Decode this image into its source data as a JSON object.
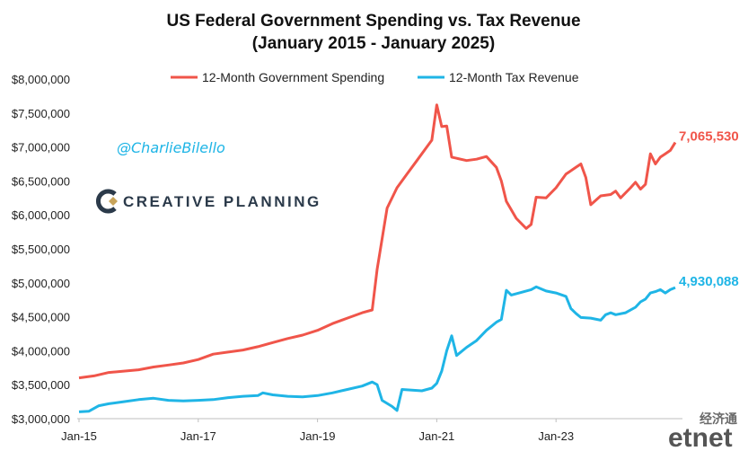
{
  "chart_data": {
    "type": "line",
    "title": "US Federal Government Spending vs. Tax Revenue",
    "subtitle": "(January 2015 - January 2025)",
    "ylim": [
      3000000,
      8000000
    ],
    "y_ticks": [
      3000000,
      3500000,
      4000000,
      4500000,
      5000000,
      5500000,
      6000000,
      6500000,
      7000000,
      7500000,
      8000000
    ],
    "y_tick_labels": [
      "$3,000,000",
      "$3,500,000",
      "$4,000,000",
      "$4,500,000",
      "$5,000,000",
      "$5,500,000",
      "$6,000,000",
      "$6,500,000",
      "$7,000,000",
      "$7,500,000",
      "$8,000,000"
    ],
    "x_tick_labels": [
      "Jan-15",
      "Jan-17",
      "Jan-19",
      "Jan-21",
      "Jan-23"
    ],
    "x_tick_index": [
      0,
      24,
      48,
      72,
      96
    ],
    "n_points": 121,
    "grid": false,
    "legend_position": "top-center",
    "series": [
      {
        "name": "12-Month Government Spending",
        "color": "#f0554a",
        "end_label": "7,065,530",
        "points": [
          [
            0,
            3600000
          ],
          [
            3,
            3630000
          ],
          [
            6,
            3680000
          ],
          [
            9,
            3700000
          ],
          [
            12,
            3720000
          ],
          [
            15,
            3760000
          ],
          [
            18,
            3790000
          ],
          [
            21,
            3820000
          ],
          [
            24,
            3870000
          ],
          [
            27,
            3950000
          ],
          [
            30,
            3980000
          ],
          [
            33,
            4010000
          ],
          [
            36,
            4060000
          ],
          [
            39,
            4120000
          ],
          [
            42,
            4180000
          ],
          [
            45,
            4230000
          ],
          [
            48,
            4300000
          ],
          [
            51,
            4400000
          ],
          [
            54,
            4480000
          ],
          [
            57,
            4560000
          ],
          [
            59,
            4600000
          ],
          [
            60,
            5200000
          ],
          [
            62,
            6100000
          ],
          [
            64,
            6400000
          ],
          [
            66,
            6600000
          ],
          [
            68,
            6800000
          ],
          [
            70,
            7000000
          ],
          [
            71,
            7100000
          ],
          [
            72,
            7620000
          ],
          [
            73,
            7300000
          ],
          [
            74,
            7310000
          ],
          [
            75,
            6850000
          ],
          [
            78,
            6800000
          ],
          [
            80,
            6820000
          ],
          [
            82,
            6860000
          ],
          [
            84,
            6700000
          ],
          [
            85,
            6500000
          ],
          [
            86,
            6200000
          ],
          [
            88,
            5950000
          ],
          [
            90,
            5800000
          ],
          [
            91,
            5860000
          ],
          [
            92,
            6260000
          ],
          [
            94,
            6250000
          ],
          [
            96,
            6400000
          ],
          [
            98,
            6600000
          ],
          [
            100,
            6700000
          ],
          [
            101,
            6750000
          ],
          [
            102,
            6550000
          ],
          [
            103,
            6150000
          ],
          [
            105,
            6280000
          ],
          [
            107,
            6300000
          ],
          [
            108,
            6350000
          ],
          [
            109,
            6250000
          ],
          [
            111,
            6400000
          ],
          [
            112,
            6480000
          ],
          [
            113,
            6380000
          ],
          [
            114,
            6450000
          ],
          [
            115,
            6900000
          ],
          [
            116,
            6750000
          ],
          [
            117,
            6850000
          ],
          [
            118,
            6900000
          ],
          [
            119,
            6950000
          ],
          [
            120,
            7065530
          ]
        ]
      },
      {
        "name": "12-Month Tax Revenue",
        "color": "#1fb5e6",
        "end_label": "4,930,088",
        "points": [
          [
            0,
            3100000
          ],
          [
            2,
            3110000
          ],
          [
            4,
            3190000
          ],
          [
            6,
            3220000
          ],
          [
            9,
            3250000
          ],
          [
            12,
            3280000
          ],
          [
            15,
            3300000
          ],
          [
            18,
            3270000
          ],
          [
            21,
            3260000
          ],
          [
            24,
            3270000
          ],
          [
            27,
            3280000
          ],
          [
            30,
            3310000
          ],
          [
            33,
            3330000
          ],
          [
            36,
            3340000
          ],
          [
            37,
            3380000
          ],
          [
            39,
            3350000
          ],
          [
            42,
            3330000
          ],
          [
            45,
            3320000
          ],
          [
            48,
            3340000
          ],
          [
            51,
            3380000
          ],
          [
            54,
            3430000
          ],
          [
            57,
            3480000
          ],
          [
            59,
            3540000
          ],
          [
            60,
            3500000
          ],
          [
            61,
            3270000
          ],
          [
            63,
            3180000
          ],
          [
            64,
            3120000
          ],
          [
            65,
            3430000
          ],
          [
            67,
            3420000
          ],
          [
            69,
            3410000
          ],
          [
            71,
            3450000
          ],
          [
            72,
            3520000
          ],
          [
            73,
            3700000
          ],
          [
            74,
            4000000
          ],
          [
            75,
            4220000
          ],
          [
            76,
            3930000
          ],
          [
            78,
            4050000
          ],
          [
            80,
            4150000
          ],
          [
            82,
            4300000
          ],
          [
            84,
            4420000
          ],
          [
            85,
            4460000
          ],
          [
            86,
            4890000
          ],
          [
            87,
            4820000
          ],
          [
            89,
            4860000
          ],
          [
            91,
            4900000
          ],
          [
            92,
            4940000
          ],
          [
            94,
            4880000
          ],
          [
            96,
            4850000
          ],
          [
            98,
            4800000
          ],
          [
            99,
            4620000
          ],
          [
            100,
            4550000
          ],
          [
            101,
            4490000
          ],
          [
            103,
            4480000
          ],
          [
            105,
            4450000
          ],
          [
            106,
            4530000
          ],
          [
            107,
            4560000
          ],
          [
            108,
            4530000
          ],
          [
            110,
            4560000
          ],
          [
            112,
            4640000
          ],
          [
            113,
            4720000
          ],
          [
            114,
            4760000
          ],
          [
            115,
            4850000
          ],
          [
            116,
            4870000
          ],
          [
            117,
            4900000
          ],
          [
            118,
            4850000
          ],
          [
            119,
            4900000
          ],
          [
            120,
            4930088
          ]
        ]
      }
    ]
  },
  "annotations": {
    "handle": "@CharlieBilello",
    "brand": "CREATIVE PLANNING",
    "watermark_cn": "经济通",
    "watermark_en": "etnet"
  },
  "colors": {
    "spending": "#f0554a",
    "revenue": "#1fb5e6",
    "handle": "#1fb5e6",
    "brand": "#2b3a4a",
    "brand_accent": "#c8a45a"
  }
}
